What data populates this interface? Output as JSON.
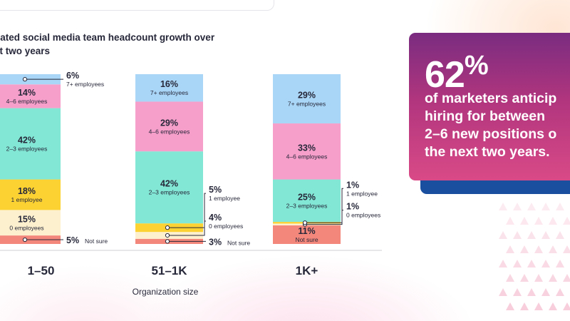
{
  "chart_data": {
    "type": "bar",
    "stacked": true,
    "title": "Anticipated social media team headcount growth over the next two years",
    "xlabel": "Organization size",
    "ylabel": "",
    "categories": [
      "1–50",
      "51–1K",
      "1K+"
    ],
    "series": [
      {
        "name": "Not sure",
        "color": "#f4877b",
        "values": [
          5,
          3,
          11
        ]
      },
      {
        "name": "0 employees",
        "color": "#fdf0cf",
        "values": [
          15,
          4,
          1
        ]
      },
      {
        "name": "1 employee",
        "color": "#fcd232",
        "values": [
          18,
          5,
          1
        ]
      },
      {
        "name": "2–3 employees",
        "color": "#82e7d5",
        "values": [
          42,
          42,
          25
        ]
      },
      {
        "name": "4–6 employees",
        "color": "#f79fcb",
        "values": [
          14,
          29,
          33
        ]
      },
      {
        "name": "7+ employees",
        "color": "#a9d6f7",
        "values": [
          6,
          16,
          29
        ]
      }
    ],
    "ylim": [
      0,
      100
    ]
  },
  "title_visible": "pated social media team headcount growth over\nxt two years",
  "callout": {
    "number": "62",
    "percent_sign": "%",
    "text_lines": [
      "of marketers anticip",
      "hiring for between",
      "2–6 new positions o",
      "the next two years."
    ]
  },
  "colors": {
    "card_top": "#7a2c80",
    "card_bottom": "#d94a87",
    "card_shadow": "#1a4fa0",
    "triangle": "#f7c9d8",
    "text_dark": "#27283a"
  }
}
